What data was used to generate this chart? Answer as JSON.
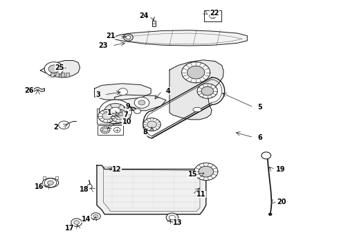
{
  "bg": "#ffffff",
  "fw": 4.9,
  "fh": 3.6,
  "dpi": 100,
  "labels": {
    "1": [
      0.33,
      0.548,
      "right"
    ],
    "2": [
      0.17,
      0.49,
      "right"
    ],
    "3": [
      0.295,
      0.62,
      "right"
    ],
    "4": [
      0.49,
      0.635,
      "left"
    ],
    "5": [
      0.76,
      0.57,
      "left"
    ],
    "6": [
      0.76,
      0.448,
      "left"
    ],
    "7": [
      0.378,
      0.54,
      "right"
    ],
    "8": [
      0.435,
      0.468,
      "right"
    ],
    "9": [
      0.37,
      0.572,
      "left"
    ],
    "10": [
      0.36,
      0.51,
      "left"
    ],
    "11": [
      0.58,
      0.218,
      "left"
    ],
    "12": [
      0.33,
      0.32,
      "left"
    ],
    "13": [
      0.51,
      0.105,
      "left"
    ],
    "14": [
      0.268,
      0.118,
      "right"
    ],
    "15": [
      0.582,
      0.298,
      "right"
    ],
    "16": [
      0.128,
      0.248,
      "right"
    ],
    "17": [
      0.218,
      0.082,
      "right"
    ],
    "18": [
      0.262,
      0.238,
      "right"
    ],
    "19": [
      0.815,
      0.318,
      "left"
    ],
    "20": [
      0.818,
      0.188,
      "left"
    ],
    "21": [
      0.34,
      0.858,
      "right"
    ],
    "22": [
      0.62,
      0.948,
      "left"
    ],
    "23": [
      0.318,
      0.818,
      "right"
    ],
    "24": [
      0.438,
      0.938,
      "right"
    ],
    "25": [
      0.188,
      0.728,
      "right"
    ],
    "26": [
      0.098,
      0.638,
      "right"
    ]
  }
}
